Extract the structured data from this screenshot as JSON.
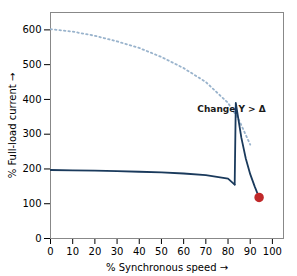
{
  "chart_data": {
    "type": "line",
    "annotation": "Change Y > Δ",
    "xlabel": "% Synchronous speed",
    "ylabel": "% Full-load current",
    "xlim": [
      0,
      105
    ],
    "ylim": [
      0,
      650
    ],
    "xticks": [
      0,
      10,
      20,
      30,
      40,
      50,
      60,
      70,
      80,
      90,
      100
    ],
    "yticks": [
      0,
      100,
      200,
      300,
      400,
      500,
      600
    ],
    "grid": false,
    "series": [
      {
        "color": "#99b3cc",
        "line_style": "dotted",
        "x": [
          0,
          10,
          20,
          30,
          40,
          50,
          60,
          70,
          80,
          85,
          90
        ],
        "values": [
          602,
          595,
          583,
          567,
          548,
          522,
          490,
          450,
          390,
          340,
          270
        ]
      },
      {
        "color": "#1a3a5c",
        "line_style": "solid",
        "x": [
          0,
          10,
          20,
          30,
          40,
          50,
          60,
          70,
          80,
          83
        ],
        "values": [
          197,
          196,
          195,
          194,
          192,
          190,
          187,
          182,
          172,
          155
        ]
      },
      {
        "color": "#1a3a5c",
        "line_style": "solid",
        "x": [
          83,
          83.5,
          84,
          86,
          88,
          90,
          92,
          94
        ],
        "values": [
          155,
          390,
          370,
          290,
          230,
          185,
          150,
          118
        ]
      },
      {
        "type": "scatter",
        "marker": "circle",
        "color": "#c0292a",
        "x": [
          94
        ],
        "values": [
          118
        ]
      }
    ]
  }
}
